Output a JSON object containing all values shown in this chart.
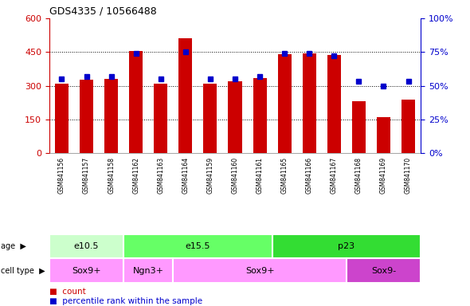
{
  "title": "GDS4335 / 10566488",
  "samples": [
    "GSM841156",
    "GSM841157",
    "GSM841158",
    "GSM841162",
    "GSM841163",
    "GSM841164",
    "GSM841159",
    "GSM841160",
    "GSM841161",
    "GSM841165",
    "GSM841166",
    "GSM841167",
    "GSM841168",
    "GSM841169",
    "GSM841170"
  ],
  "counts": [
    310,
    325,
    330,
    455,
    308,
    510,
    310,
    320,
    335,
    440,
    445,
    438,
    230,
    160,
    238
  ],
  "percentiles": [
    55,
    57,
    57,
    74,
    55,
    75,
    55,
    55,
    57,
    74,
    74,
    72,
    53,
    50,
    53
  ],
  "bar_color": "#cc0000",
  "dot_color": "#0000cc",
  "ylim_left": [
    0,
    600
  ],
  "ylim_right": [
    0,
    100
  ],
  "yticks_left": [
    0,
    150,
    300,
    450,
    600
  ],
  "yticks_right": [
    0,
    25,
    50,
    75,
    100
  ],
  "ytick_labels_left": [
    "0",
    "150",
    "300",
    "450",
    "600"
  ],
  "ytick_labels_right": [
    "0%",
    "25%",
    "50%",
    "75%",
    "100%"
  ],
  "age_groups": [
    {
      "label": "e10.5",
      "start": 0,
      "end": 2,
      "color": "#ccffcc"
    },
    {
      "label": "e15.5",
      "start": 3,
      "end": 8,
      "color": "#66ff66"
    },
    {
      "label": "p23",
      "start": 9,
      "end": 14,
      "color": "#33dd33"
    }
  ],
  "cell_groups": [
    {
      "label": "Sox9+",
      "start": 0,
      "end": 2,
      "color": "#ff99ff"
    },
    {
      "label": "Ngn3+",
      "start": 3,
      "end": 4,
      "color": "#ff99ff"
    },
    {
      "label": "Sox9+",
      "start": 5,
      "end": 11,
      "color": "#ff99ff"
    },
    {
      "label": "Sox9-",
      "start": 12,
      "end": 14,
      "color": "#cc44cc"
    }
  ],
  "legend_count_color": "#cc0000",
  "legend_dot_color": "#0000cc",
  "left_axis_color": "#cc0000",
  "right_axis_color": "#0000cc",
  "tick_bg_color": "#cccccc",
  "age_label": "age",
  "cell_label": "cell type"
}
